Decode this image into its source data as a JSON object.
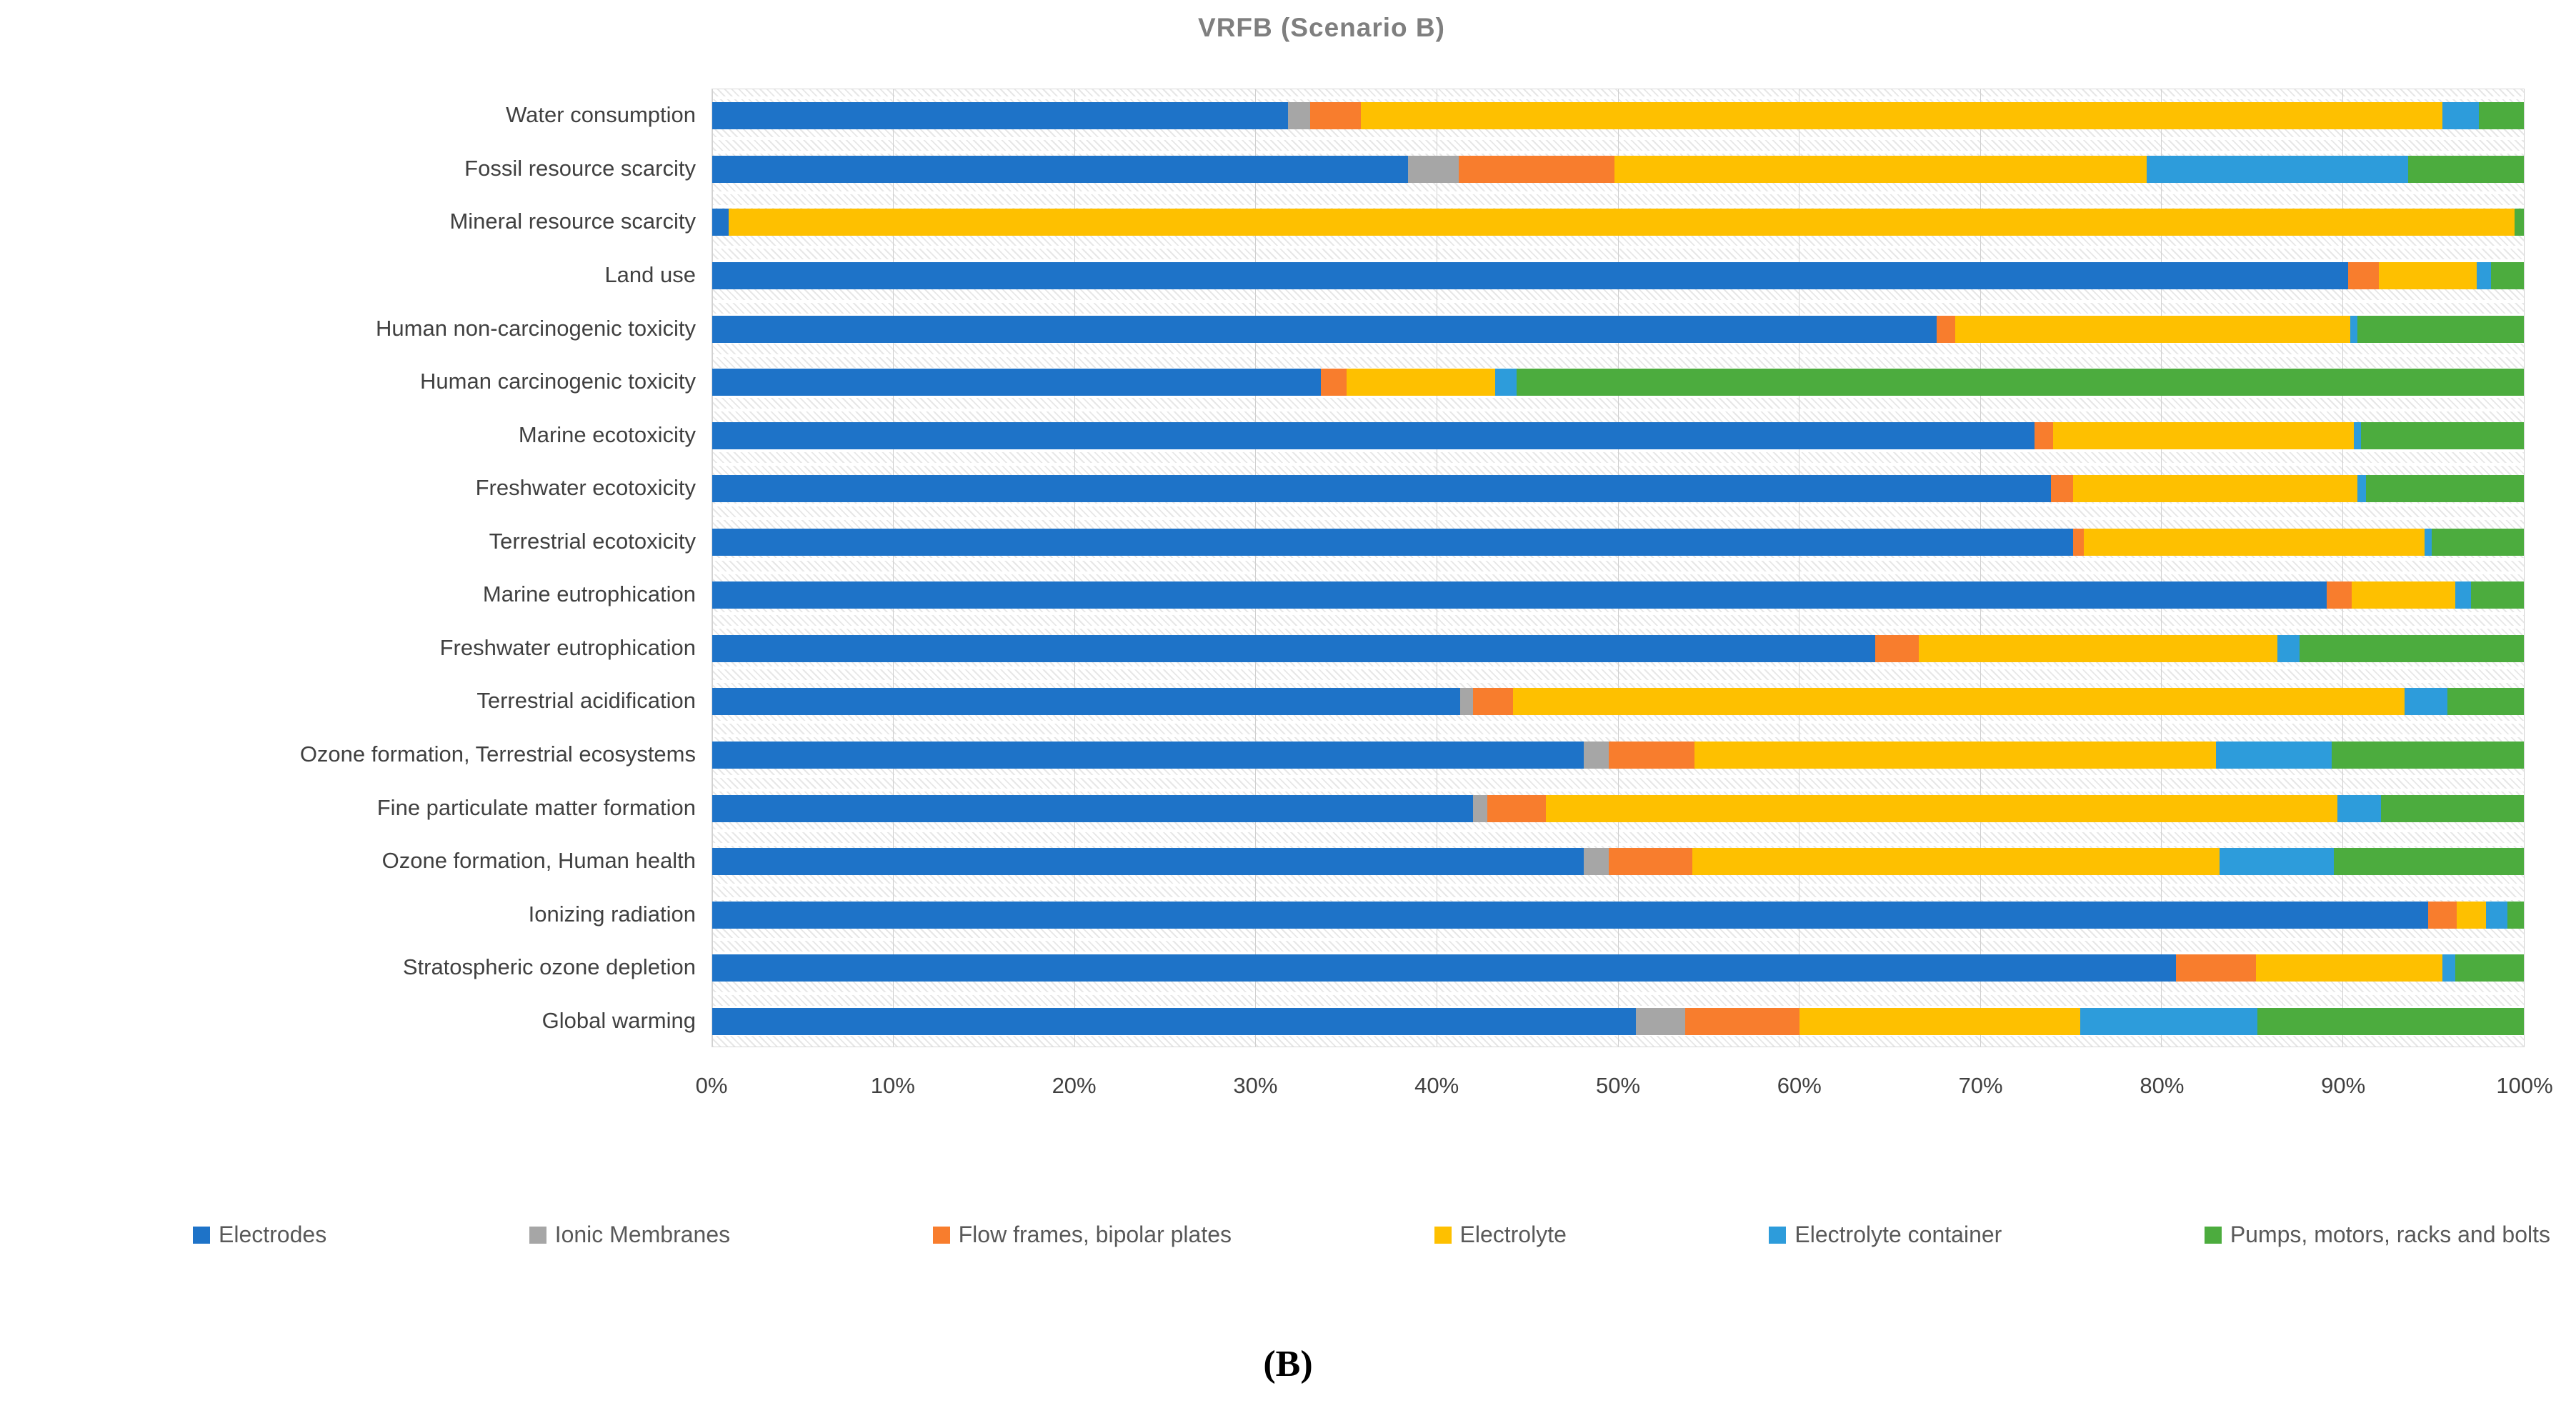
{
  "figure": {
    "caption": "(B)"
  },
  "chart_data": {
    "type": "bar",
    "orientation": "horizontal-stacked",
    "title": "VRFB  (Scenario B)",
    "legend_position": "bottom",
    "x_axis": {
      "min": 0,
      "max": 100,
      "grid": true,
      "ticks": [
        "0%",
        "10%",
        "20%",
        "30%",
        "40%",
        "50%",
        "60%",
        "70%",
        "80%",
        "90%",
        "100%"
      ]
    },
    "categories": [
      "Water consumption",
      "Fossil resource scarcity",
      "Mineral resource scarcity",
      "Land use",
      "Human non-carcinogenic toxicity",
      "Human carcinogenic toxicity",
      "Marine ecotoxicity",
      "Freshwater ecotoxicity",
      "Terrestrial ecotoxicity",
      "Marine eutrophication",
      "Freshwater eutrophication",
      "Terrestrial acidification",
      "Ozone formation, Terrestrial ecosystems",
      "Fine particulate matter formation",
      "Ozone formation, Human health",
      "Ionizing radiation",
      "Stratospheric ozone depletion",
      "Global warming"
    ],
    "series": [
      {
        "name": "Electrodes",
        "color": "#1E73C8",
        "values": [
          31.8,
          38.4,
          0.9,
          90.3,
          67.6,
          33.6,
          73.0,
          73.9,
          75.1,
          89.1,
          64.2,
          41.3,
          48.1,
          42.0,
          48.1,
          94.7,
          80.8,
          51.0
        ]
      },
      {
        "name": "Ionic Membranes",
        "color": "#A6A6A6",
        "values": [
          1.2,
          2.8,
          0,
          0,
          0,
          0,
          0,
          0,
          0,
          0,
          0,
          0.7,
          1.4,
          0.8,
          1.4,
          0,
          0,
          2.7
        ]
      },
      {
        "name": "Flow frames, bipolar plates",
        "color": "#F87D2D",
        "values": [
          2.8,
          8.6,
          0,
          1.7,
          1.0,
          1.4,
          1.0,
          1.2,
          0.6,
          1.4,
          2.4,
          2.2,
          4.7,
          3.2,
          4.6,
          1.6,
          4.4,
          6.3
        ]
      },
      {
        "name": "Electrolyte",
        "color": "#FEC000",
        "values": [
          59.7,
          29.4,
          98.6,
          5.4,
          21.8,
          8.2,
          16.6,
          15.7,
          18.8,
          5.7,
          19.8,
          49.2,
          28.8,
          43.7,
          29.1,
          1.6,
          10.3,
          15.5
        ]
      },
      {
        "name": "Electrolyte container",
        "color": "#2D9CDB",
        "values": [
          2.0,
          14.4,
          0,
          0.8,
          0.4,
          1.2,
          0.4,
          0.5,
          0.4,
          0.9,
          1.2,
          2.4,
          6.4,
          2.4,
          6.3,
          1.2,
          0.7,
          9.8
        ]
      },
      {
        "name": "Pumps, motors, racks and bolts",
        "color": "#4CAC3E",
        "values": [
          2.5,
          6.4,
          0.5,
          1.8,
          9.2,
          55.6,
          9.0,
          8.7,
          5.1,
          2.9,
          12.4,
          4.2,
          10.6,
          7.9,
          10.5,
          0.9,
          3.8,
          14.7
        ]
      }
    ]
  }
}
